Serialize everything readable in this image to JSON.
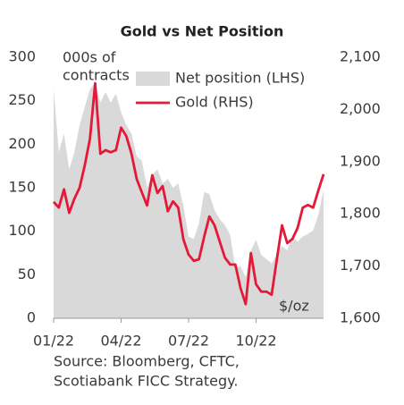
{
  "chart_data": {
    "type": "area-line",
    "title": "Gold vs Net Position",
    "ylabel_lines": [
      "000s of",
      "contracts"
    ],
    "y2label": "$/oz",
    "source_lines": [
      "Source: Bloomberg, CFTC,",
      "Scotiabank FICC Strategy."
    ],
    "categories": [
      "01/22",
      null,
      null,
      null,
      null,
      null,
      null,
      null,
      null,
      null,
      null,
      null,
      null,
      "04/22",
      null,
      null,
      null,
      null,
      null,
      null,
      null,
      null,
      null,
      null,
      null,
      null,
      "07/22",
      null,
      null,
      null,
      null,
      null,
      null,
      null,
      null,
      null,
      null,
      null,
      null,
      "10/22",
      null,
      null,
      null,
      null,
      null,
      null,
      null,
      null,
      null,
      null,
      null,
      null,
      null
    ],
    "ylim": [
      0,
      300
    ],
    "yticks": [
      0,
      50,
      100,
      150,
      200,
      250,
      300
    ],
    "y2lim": [
      1600,
      2100
    ],
    "y2ticks": [
      {
        "value": 1600,
        "label": "1,600"
      },
      {
        "value": 1700,
        "label": "1,700"
      },
      {
        "value": 1800,
        "label": "1,800"
      },
      {
        "value": 1900,
        "label": "1,900"
      },
      {
        "value": 2000,
        "label": "2,000"
      },
      {
        "value": 2100,
        "label": "2,100"
      }
    ],
    "series": [
      {
        "name": "Net position (LHS)",
        "kind": "area",
        "color": "#d9d9d9",
        "values": [
          263,
          191,
          212,
          171,
          191,
          222,
          243,
          263,
          271,
          248,
          260,
          248,
          258,
          237,
          222,
          212,
          186,
          181,
          150,
          165,
          171,
          155,
          160,
          150,
          155,
          129,
          94,
          91,
          109,
          145,
          143,
          124,
          114,
          107,
          96,
          58,
          60,
          47,
          78,
          90,
          73,
          68,
          63,
          73,
          83,
          78,
          94,
          88,
          94,
          97,
          101,
          119,
          148
        ]
      },
      {
        "name": "Gold (RHS)",
        "kind": "line",
        "axis": "y2",
        "color": "#e31937",
        "values": [
          1823,
          1812,
          1847,
          1802,
          1829,
          1850,
          1893,
          1944,
          2050,
          1915,
          1922,
          1918,
          1922,
          1965,
          1949,
          1915,
          1867,
          1841,
          1816,
          1874,
          1840,
          1853,
          1805,
          1824,
          1812,
          1751,
          1722,
          1710,
          1713,
          1756,
          1795,
          1778,
          1747,
          1716,
          1703,
          1703,
          1658,
          1627,
          1725,
          1665,
          1651,
          1651,
          1645,
          1713,
          1778,
          1744,
          1752,
          1773,
          1812,
          1817,
          1812,
          1845,
          1876
        ]
      }
    ]
  }
}
